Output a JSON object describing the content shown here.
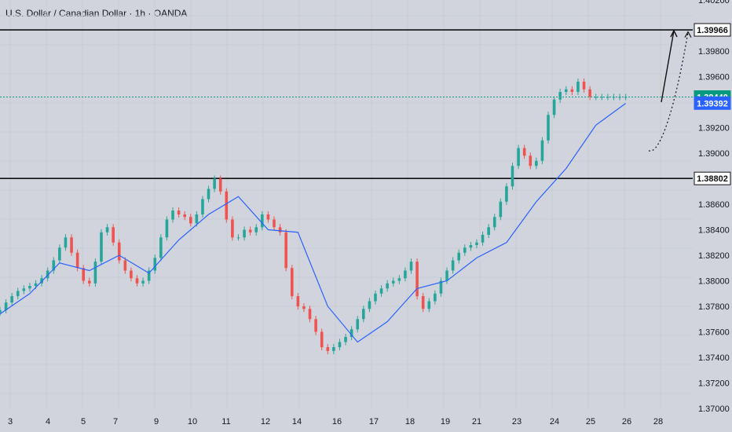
{
  "header": {
    "symbol_title": "U.S. Dollar / Canadian Dollar · 1h · OANDA"
  },
  "chart_data": {
    "type": "candlestick",
    "title": "U.S. Dollar / Canadian Dollar · 1h · OANDA",
    "ylim": [
      1.37,
      1.402
    ],
    "y_ticks": [
      "1.40200",
      "1.39800",
      "1.39600",
      "1.39200",
      "1.39000",
      "1.38600",
      "1.38400",
      "1.38200",
      "1.38000",
      "1.37800",
      "1.37600",
      "1.37400",
      "1.37200",
      "1.37000"
    ],
    "x_ticks": [
      "3",
      "4",
      "5",
      "7",
      "9",
      "10",
      "11",
      "12",
      "14",
      "16",
      "17",
      "18",
      "19",
      "21",
      "23",
      "24",
      "25",
      "26",
      "28"
    ],
    "price_labels": [
      {
        "name": "resistance",
        "value": 1.39966,
        "text": "1.39966"
      },
      {
        "name": "last-price",
        "value": 1.3944,
        "text": "1.39440"
      },
      {
        "name": "moving-average",
        "value": 1.39392,
        "text": "1.39392"
      },
      {
        "name": "support",
        "value": 1.38802,
        "text": "1.38802"
      }
    ],
    "horizontal_levels": [
      1.39966,
      1.38802
    ],
    "current_price_line": 1.3944,
    "series": [
      {
        "name": "USDCAD",
        "type": "candles",
        "x": [
          0,
          8,
          16,
          24,
          32,
          40,
          48,
          56,
          64,
          72,
          80,
          88,
          96,
          104,
          112,
          120,
          128,
          136,
          144,
          152,
          160,
          168,
          176,
          184,
          192,
          200,
          208,
          216,
          224,
          232,
          240,
          248,
          256,
          264,
          272,
          280,
          288,
          296,
          304,
          312,
          320,
          328,
          336,
          344,
          352,
          360,
          368,
          376,
          384,
          392,
          400,
          408,
          416,
          424,
          432,
          440,
          448,
          456,
          464,
          472,
          480,
          488,
          496,
          504,
          512,
          520,
          528,
          536,
          544,
          552,
          560,
          568,
          576,
          584,
          592,
          600,
          608,
          616,
          624,
          632,
          640,
          648,
          656,
          664,
          672,
          680,
          688,
          696,
          704,
          712,
          720,
          728,
          736,
          744,
          752,
          760,
          768,
          776,
          784,
          792,
          800,
          808,
          816,
          824,
          832,
          840
        ],
        "open": [
          1.3775,
          1.3777,
          1.3783,
          1.3788,
          1.3792,
          1.3794,
          1.3796,
          1.3798,
          1.3802,
          1.3808,
          1.3816,
          1.3826,
          1.3834,
          1.3822,
          1.381,
          1.38,
          1.3798,
          1.3815,
          1.3838,
          1.3842,
          1.383,
          1.3816,
          1.3808,
          1.3802,
          1.3798,
          1.38,
          1.3808,
          1.3818,
          1.3834,
          1.3848,
          1.3855,
          1.3852,
          1.385,
          1.3845,
          1.3852,
          1.3864,
          1.3872,
          1.388,
          1.387,
          1.3848,
          1.3834,
          1.3834,
          1.384,
          1.3838,
          1.3842,
          1.3852,
          1.3848,
          1.3842,
          1.3838,
          1.381,
          1.3788,
          1.378,
          1.3778,
          1.377,
          1.376,
          1.3748,
          1.3745,
          1.3748,
          1.3752,
          1.3756,
          1.3762,
          1.377,
          1.3778,
          1.3784,
          1.379,
          1.3794,
          1.3798,
          1.38,
          1.3802,
          1.3808,
          1.3815,
          1.3788,
          1.3778,
          1.3784,
          1.379,
          1.38,
          1.3808,
          1.3816,
          1.3822,
          1.3826,
          1.3828,
          1.383,
          1.3836,
          1.3842,
          1.385,
          1.3862,
          1.3874,
          1.389,
          1.3904,
          1.3898,
          1.389,
          1.3894,
          1.391,
          1.393,
          1.3942,
          1.3948,
          1.395,
          1.3948,
          1.3956,
          1.395,
          1.3944,
          1.3944,
          1.3944,
          1.3944,
          1.3944,
          1.3944
        ],
        "close": [
          1.3777,
          1.3783,
          1.3788,
          1.3792,
          1.3794,
          1.3796,
          1.3798,
          1.3802,
          1.3808,
          1.3816,
          1.3826,
          1.3834,
          1.3822,
          1.381,
          1.38,
          1.3798,
          1.3815,
          1.3838,
          1.3842,
          1.383,
          1.3816,
          1.3808,
          1.3802,
          1.3798,
          1.38,
          1.3808,
          1.3818,
          1.3834,
          1.3848,
          1.3855,
          1.3852,
          1.385,
          1.3845,
          1.3852,
          1.3864,
          1.3872,
          1.388,
          1.387,
          1.3848,
          1.3834,
          1.3834,
          1.384,
          1.3838,
          1.3842,
          1.3852,
          1.3848,
          1.3842,
          1.3838,
          1.381,
          1.3788,
          1.378,
          1.3778,
          1.377,
          1.376,
          1.3748,
          1.3745,
          1.3748,
          1.3752,
          1.3756,
          1.3762,
          1.377,
          1.3778,
          1.3784,
          1.379,
          1.3794,
          1.3798,
          1.38,
          1.3802,
          1.3808,
          1.3815,
          1.3788,
          1.3778,
          1.3784,
          1.379,
          1.38,
          1.3808,
          1.3816,
          1.3822,
          1.3826,
          1.3828,
          1.383,
          1.3836,
          1.3842,
          1.385,
          1.3862,
          1.3874,
          1.389,
          1.3904,
          1.3898,
          1.389,
          1.3894,
          1.391,
          1.393,
          1.3942,
          1.3948,
          1.395,
          1.3948,
          1.3956,
          1.395,
          1.3944,
          1.3944,
          1.3944,
          1.3944,
          1.3944,
          1.3944,
          1.3944
        ]
      },
      {
        "name": "Moving Average",
        "type": "line",
        "color": "#2962ff",
        "x": [
          0,
          40,
          80,
          120,
          160,
          200,
          240,
          280,
          320,
          360,
          400,
          440,
          480,
          520,
          560,
          600,
          640,
          680,
          720,
          760,
          800,
          840
        ],
        "y": [
          1.3774,
          1.379,
          1.3814,
          1.3808,
          1.382,
          1.3806,
          1.3832,
          1.3852,
          1.3866,
          1.384,
          1.3838,
          1.378,
          1.3752,
          1.3768,
          1.3794,
          1.38,
          1.3818,
          1.383,
          1.3862,
          1.3888,
          1.3922,
          1.3939
        ]
      }
    ],
    "annotations": [
      {
        "type": "arrow",
        "style": "solid",
        "from_x": 842,
        "from_y": 1.394,
        "to_x": 858,
        "to_y": 1.3996
      },
      {
        "type": "arrow",
        "style": "dotted",
        "path_x": [
          826,
          840,
          860,
          876
        ],
        "path_y": [
          1.3902,
          1.3898,
          1.3936,
          1.3995
        ]
      }
    ]
  }
}
